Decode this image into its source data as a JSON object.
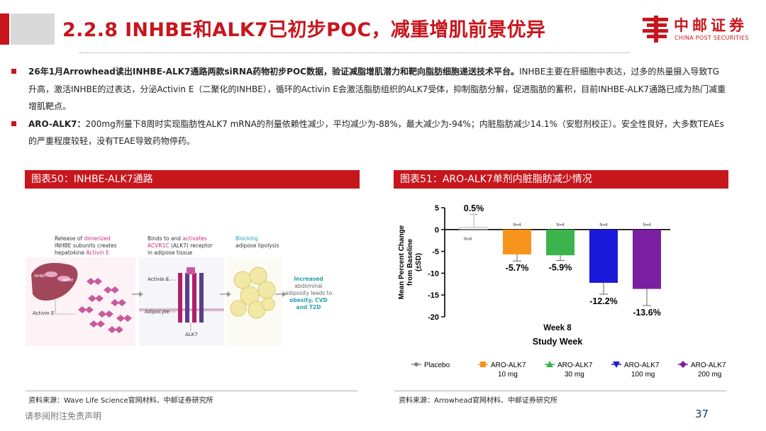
{
  "header": {
    "title": "2.2.8 INHBE和ALK7已初步POC，减重增肌前景优异",
    "logo_cn": "中邮证券",
    "logo_en": "CHINA POST SECURITIES"
  },
  "bullets": [
    {
      "bold": "26年1月Arrowhead读出INHBE-ALK7通路两款siRNA药物初步POC数据，验证减脂增肌潜力和靶向脂肪细胞递送技术平台。",
      "text": "INHBE主要在肝细胞中表达，过多的热量摄入导致TG升高，激活INHBE的过表达，分泌Activin E（二聚化的INHBE），循环的Activin E会激活脂肪组织的ALK7受体，抑制脂肪分解，促进脂肪的蓄积，目前INHBE-ALK7通路已成为热门减重增肌靶点。"
    },
    {
      "bold": "ARO-ALK7：",
      "text": "200mg剂量下8周时实现脂肪性ALK7 mRNA的剂量依赖性减少，平均减少为-88%，最大减少为-94%；内脏脂肪减少14.1%（安慰剂校正）。安全性良好，大多数TEAEs的严重程度较轻，没有TEAE导致药物停药。"
    }
  ],
  "figure50": {
    "title": "图表50：INHBE-ALK7通路",
    "source": "资料来源：Wave Life Science官网材料、中邮证券研究所",
    "diagram": {
      "col1_text": [
        "Release of ",
        "dimerized",
        "INHBE subunits creates",
        "hepatokine ",
        "Activin E"
      ],
      "col2_text": [
        "Binds to and ",
        "activates",
        "ACVR1C",
        " (ALK7) receptor",
        "in adipose tissue"
      ],
      "col3_text": [
        "Blocking",
        "adipose lipolysis"
      ],
      "col4_text": [
        "Increased",
        "abdominal",
        "adiposity leads to",
        "obesity, CVD",
        "and T2D"
      ],
      "liver_label1": "INHBE",
      "liver_label2": "INHBE",
      "activin_label1": "Activin E",
      "activin_label2": "Activin E",
      "adipocyte_label": "Adipocyte",
      "alk7_label": "ALK7"
    }
  },
  "figure51": {
    "title": "图表51：ARO-ALK7单剂内脏脂肪减少情况",
    "source": "资料来源：Arrowhead官网材料、中邮证券研究所"
  },
  "footer": {
    "disclaimer": "请参阅附注免责声明",
    "page": "37"
  },
  "colors": {
    "brand_red": "#c8161d",
    "placebo": "#888888",
    "alk7_10": "#f7941d",
    "alk7_30": "#3cb44b",
    "alk7_100": "#1a1adb",
    "alk7_200": "#7b1fa2"
  },
  "chart_data": {
    "type": "bar",
    "xlabel": "Study Week",
    "category_label": "Week 8",
    "ylabel": "Mean Percent Change from Baseline (±SD)",
    "ylim": [
      -20,
      5
    ],
    "yticks": [
      5,
      0,
      -5,
      -10,
      -15,
      -20
    ],
    "categories": [
      "Week 8"
    ],
    "series": [
      {
        "name": "Placebo",
        "value": 0.5,
        "label": "0.5%",
        "n": "N=8",
        "color": "#888888",
        "err": 3.0
      },
      {
        "name": "ARO-ALK7 10 mg",
        "value": -5.7,
        "label": "-5.7%",
        "n": "N=4",
        "color": "#f7941d",
        "err": 1.5
      },
      {
        "name": "ARO-ALK7 30 mg",
        "value": -5.9,
        "label": "-5.9%",
        "n": "N=4",
        "color": "#3cb44b",
        "err": 1.2
      },
      {
        "name": "ARO-ALK7 100 mg",
        "value": -12.2,
        "label": "-12.2%",
        "n": "N=4",
        "color": "#1a1adb",
        "err": 2.6
      },
      {
        "name": "ARO-ALK7 200 mg",
        "value": -13.6,
        "label": "-13.6%",
        "n": "N=4",
        "color": "#7b1fa2",
        "err": 3.8
      }
    ],
    "legend": [
      {
        "line1": "Placebo",
        "line2": ""
      },
      {
        "line1": "ARO-ALK7",
        "line2": "10 mg"
      },
      {
        "line1": "ARO-ALK7",
        "line2": "30 mg"
      },
      {
        "line1": "ARO-ALK7",
        "line2": "100 mg"
      },
      {
        "line1": "ARO-ALK7",
        "line2": "200 mg"
      }
    ],
    "legend_position": "bottom"
  }
}
